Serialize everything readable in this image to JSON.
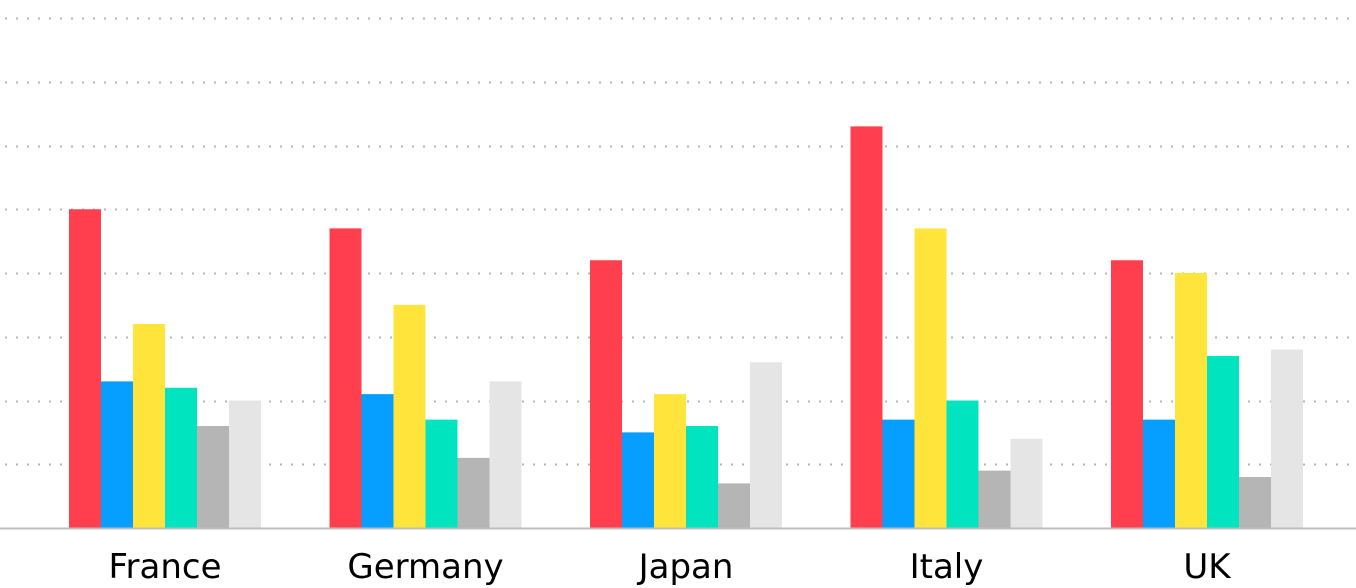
{
  "chart_data": {
    "type": "bar",
    "title": "",
    "xlabel": "",
    "ylabel": "",
    "categories": [
      "France",
      "Germany",
      "Japan",
      "Italy",
      "UK"
    ],
    "ylim": [
      0,
      80
    ],
    "grid": true,
    "series": [
      {
        "color": "#FF3F4E",
        "values": [
          50,
          47,
          42,
          63,
          42
        ]
      },
      {
        "color": "#069EFF",
        "values": [
          23,
          21,
          15,
          17,
          17
        ]
      },
      {
        "color": "#FFE53B",
        "values": [
          32,
          35,
          21,
          47,
          40
        ]
      },
      {
        "color": "#00E5C0",
        "values": [
          22,
          17,
          16,
          20,
          27
        ]
      },
      {
        "color": "#B5B5B5",
        "values": [
          16,
          11,
          7,
          9,
          8
        ]
      },
      {
        "color": "#E5E5E5",
        "values": [
          20,
          23,
          26,
          14,
          28
        ]
      }
    ]
  }
}
